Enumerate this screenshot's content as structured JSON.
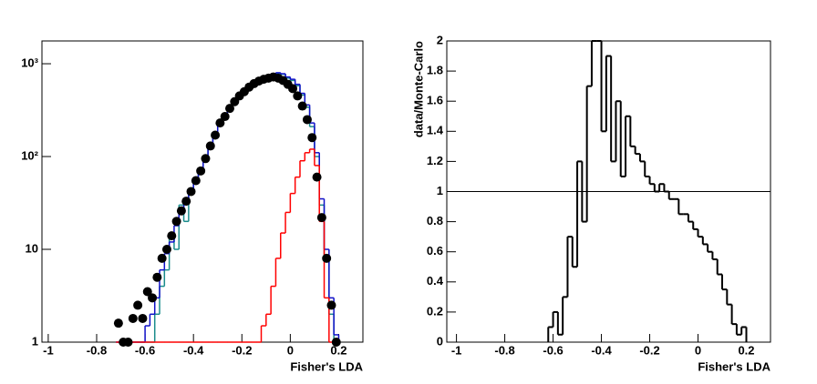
{
  "chart_data": [
    {
      "type": "histogram",
      "x_label": "Fisher's LDA",
      "xlim": [
        -1.026,
        0.3
      ],
      "xticks": [
        -1,
        -0.8,
        -0.6,
        -0.4,
        -0.2,
        0,
        0.2
      ],
      "ylim": [
        1,
        1760
      ],
      "log_y": true,
      "yticks": [
        1,
        10,
        {
          "value": 100,
          "label": "10²"
        },
        {
          "value": 1000,
          "label": "10³"
        }
      ],
      "bins": [
        -0.72,
        -0.7,
        -0.68,
        -0.66,
        -0.64,
        -0.62,
        -0.6,
        -0.58,
        -0.56,
        -0.54,
        -0.52,
        -0.5,
        -0.48,
        -0.46,
        -0.44,
        -0.42,
        -0.4,
        -0.38,
        -0.36,
        -0.34,
        -0.32,
        -0.3,
        -0.28,
        -0.26,
        -0.24,
        -0.22,
        -0.2,
        -0.18,
        -0.16,
        -0.14,
        -0.12,
        -0.1,
        -0.08,
        -0.06,
        -0.04,
        -0.02,
        0,
        0.02,
        0.04,
        0.06,
        0.08,
        0.1,
        0.12,
        0.14,
        0.16,
        0.18,
        0.2
      ],
      "series": [
        {
          "color": "#1a8c8c",
          "values": [
            1,
            1,
            1,
            1,
            1,
            1,
            1,
            1,
            2,
            4,
            6,
            15,
            10,
            30,
            20,
            40,
            55,
            70,
            95,
            130,
            175,
            230,
            280,
            340,
            400,
            460,
            520,
            580,
            630,
            680,
            710,
            740,
            770,
            790,
            770,
            700,
            660,
            580,
            460,
            340,
            210,
            100,
            30,
            8,
            2,
            1
          ]
        },
        {
          "color": "#1010c8",
          "values": [
            1,
            1,
            1,
            1,
            1,
            1,
            1.5,
            2,
            3,
            6,
            9,
            12,
            18,
            25,
            33,
            45,
            58,
            75,
            100,
            135,
            180,
            240,
            290,
            350,
            410,
            470,
            530,
            590,
            640,
            690,
            720,
            750,
            780,
            800,
            780,
            720,
            680,
            600,
            480,
            360,
            230,
            110,
            35,
            10,
            3,
            1.2
          ]
        },
        {
          "color": "#ff0000",
          "values": [
            1,
            1,
            1,
            1,
            1,
            1,
            1,
            1,
            1,
            1,
            1,
            1,
            1,
            1,
            1,
            1,
            1,
            1,
            1,
            1,
            1,
            1,
            1,
            1,
            1,
            1,
            1,
            1,
            1,
            1,
            1.5,
            2,
            4,
            8,
            15,
            25,
            40,
            60,
            90,
            110,
            120,
            80,
            20,
            3,
            1,
            1
          ]
        },
        {
          "color": "#000000",
          "markers": true,
          "values": [
            1.6,
            1,
            1,
            1.8,
            2.5,
            1.8,
            3.5,
            3,
            5,
            8,
            10,
            14,
            20,
            26,
            33,
            42,
            55,
            70,
            95,
            130,
            170,
            230,
            270,
            330,
            390,
            450,
            500,
            560,
            610,
            650,
            680,
            700,
            720,
            700,
            660,
            600,
            540,
            450,
            350,
            250,
            160,
            60,
            22,
            8,
            2.5,
            1
          ]
        }
      ]
    },
    {
      "type": "histogram",
      "x_label": "Fisher's LDA",
      "y_label": "data/Monte-Carlo",
      "xlim": [
        -1.04,
        0.3
      ],
      "xticks": [
        -1,
        -0.8,
        -0.6,
        -0.4,
        -0.2,
        0,
        0.2
      ],
      "ylim": [
        0,
        2
      ],
      "yticks": [
        0,
        0.2,
        0.4,
        0.6,
        0.8,
        1,
        1.2,
        1.4,
        1.6,
        1.8,
        2
      ],
      "hline": 1,
      "bins": [
        -0.62,
        -0.6,
        -0.58,
        -0.56,
        -0.54,
        -0.52,
        -0.5,
        -0.48,
        -0.46,
        -0.44,
        -0.42,
        -0.4,
        -0.38,
        -0.36,
        -0.34,
        -0.32,
        -0.3,
        -0.28,
        -0.26,
        -0.24,
        -0.22,
        -0.2,
        -0.18,
        -0.16,
        -0.14,
        -0.12,
        -0.1,
        -0.08,
        -0.06,
        -0.04,
        -0.02,
        0,
        0.02,
        0.04,
        0.06,
        0.08,
        0.1,
        0.12,
        0.14,
        0.16,
        0.18,
        0.2
      ],
      "series": [
        {
          "color": "#000000",
          "values": [
            0.1,
            0.2,
            0.05,
            0.3,
            0.7,
            0.5,
            1.2,
            0.8,
            1.7,
            2,
            2,
            1.4,
            1.9,
            1.2,
            1.6,
            1.1,
            1.5,
            1.3,
            1.25,
            1.2,
            1.1,
            1.05,
            1,
            1.05,
            1,
            0.95,
            0.95,
            0.85,
            0.85,
            0.8,
            0.75,
            0.7,
            0.65,
            0.6,
            0.55,
            0.45,
            0.35,
            0.25,
            0.12,
            0.05,
            0.1
          ]
        }
      ]
    }
  ]
}
